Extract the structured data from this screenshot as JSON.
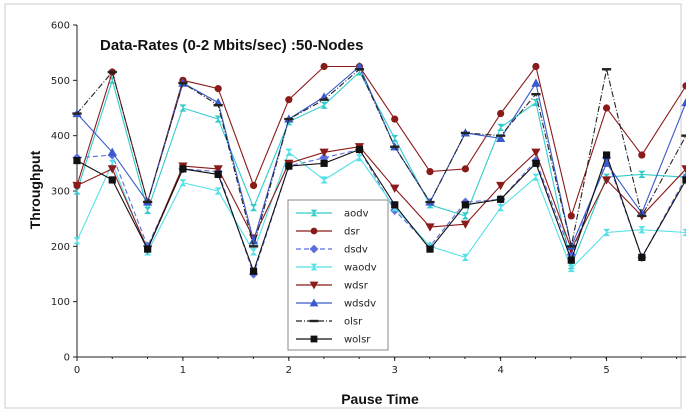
{
  "chart_data": {
    "type": "line",
    "title": "Data-Rates (0-2 Mbits/sec) :50-Nodes",
    "xlabel": "Pause Time",
    "ylabel": "Throughput",
    "xlim": [
      0,
      5.75
    ],
    "ylim": [
      0,
      600
    ],
    "xticks": [
      "0",
      "1",
      "2",
      "3",
      "4",
      "5"
    ],
    "yticks": [
      "0",
      "100",
      "200",
      "300",
      "400",
      "500",
      "600"
    ],
    "grid": false,
    "legend_position": "center-bottom",
    "x": [
      0,
      0.333,
      0.667,
      1.0,
      1.333,
      1.667,
      2.0,
      2.333,
      2.667,
      3.0,
      3.333,
      3.667,
      4.0,
      4.333,
      4.667,
      5.0,
      5.333,
      5.75
    ],
    "series": [
      {
        "name": "aodv",
        "color": "#33cccc",
        "dash": "",
        "marker": "bowtie",
        "values": [
          300,
          500,
          265,
          450,
          430,
          270,
          425,
          455,
          515,
          395,
          275,
          255,
          415,
          460,
          165,
          325,
          330,
          325
        ]
      },
      {
        "name": "dsr",
        "color": "#8b1a1a",
        "dash": "",
        "marker": "circle",
        "values": [
          310,
          515,
          280,
          500,
          485,
          310,
          465,
          525,
          525,
          430,
          335,
          340,
          440,
          525,
          255,
          450,
          365,
          490
        ]
      },
      {
        "name": "dsdv",
        "color": "#5a6ee0",
        "dash": "5,3",
        "marker": "diamond",
        "values": [
          360,
          365,
          200,
          340,
          335,
          150,
          345,
          360,
          375,
          265,
          200,
          280,
          285,
          355,
          185,
          360,
          180,
          325
        ]
      },
      {
        "name": "waodv",
        "color": "#55e0e8",
        "dash": "",
        "marker": "bowtie",
        "values": [
          210,
          350,
          190,
          315,
          300,
          190,
          370,
          320,
          360,
          270,
          200,
          180,
          270,
          325,
          160,
          225,
          230,
          225
        ]
      },
      {
        "name": "wdsr",
        "color": "#8b1a1a",
        "dash": "",
        "marker": "tri-down",
        "values": [
          310,
          340,
          195,
          345,
          340,
          215,
          350,
          370,
          380,
          305,
          235,
          240,
          310,
          370,
          195,
          320,
          255,
          340
        ]
      },
      {
        "name": "wdsdv",
        "color": "#3a5acd",
        "dash": "",
        "marker": "tri-up",
        "values": [
          440,
          370,
          280,
          495,
          460,
          210,
          430,
          470,
          525,
          380,
          280,
          405,
          395,
          495,
          200,
          350,
          260,
          460
        ]
      },
      {
        "name": "olsr",
        "color": "#222222",
        "dash": "6,2,1,2",
        "marker": "dash",
        "values": [
          440,
          515,
          280,
          495,
          455,
          200,
          430,
          465,
          520,
          380,
          280,
          405,
          400,
          475,
          200,
          520,
          255,
          400
        ]
      },
      {
        "name": "wolsr",
        "color": "#111111",
        "dash": "",
        "marker": "square",
        "values": [
          355,
          320,
          195,
          340,
          330,
          155,
          345,
          350,
          375,
          275,
          195,
          275,
          285,
          350,
          175,
          365,
          180,
          320
        ]
      }
    ]
  }
}
